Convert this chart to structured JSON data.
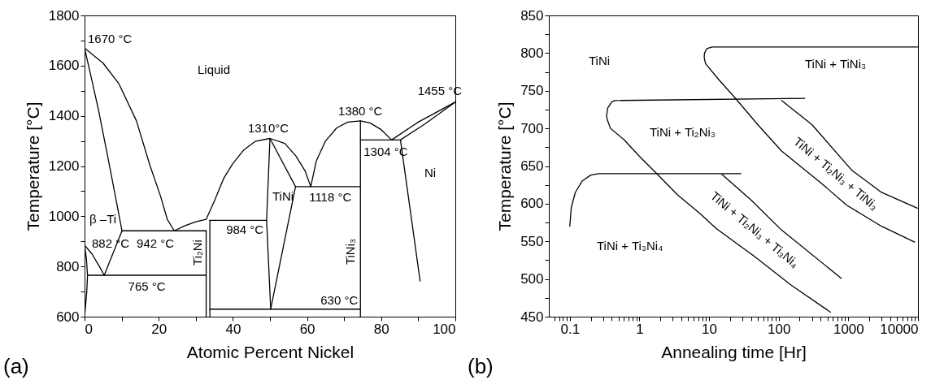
{
  "chart_data": [
    {
      "type": "line",
      "xlabel": "Atomic Percent Nickel",
      "ylabel": "Temperature [°C]",
      "xlim": [
        0,
        100
      ],
      "ylim": [
        600,
        1800
      ],
      "xticks": [
        0,
        {
          "value": 10,
          "label": null
        },
        20,
        {
          "value": 30,
          "label": null
        },
        40,
        {
          "value": 50,
          "label": null
        },
        60,
        {
          "value": 70,
          "label": null
        },
        80,
        {
          "value": 90,
          "label": null
        },
        100
      ],
      "yticks": [
        600,
        {
          "value": 700,
          "label": null
        },
        800,
        {
          "value": 900,
          "label": null
        },
        1000,
        {
          "value": 1100,
          "label": null
        },
        1200,
        {
          "value": 1300,
          "label": null
        },
        1400,
        {
          "value": 1500,
          "label": null
        },
        1600,
        {
          "value": 1700,
          "label": null
        },
        1800
      ],
      "series": [
        {
          "color": "#000000",
          "x": [
            0,
            5,
            9.3,
            14,
            17.6,
            20.5,
            22.3,
            24.2
          ],
          "values": [
            1670,
            1610,
            1527,
            1380,
            1204,
            1080,
            988,
            942
          ]
        },
        {
          "color": "#000000",
          "x": [
            0,
            2,
            3.8,
            6.7,
            8.7,
            10.1
          ],
          "values": [
            1670,
            1540,
            1420,
            1204,
            1050,
            942
          ]
        },
        {
          "color": "#000000",
          "x": [
            10.1,
            32.8
          ],
          "values": [
            942,
            942
          ]
        },
        {
          "color": "#000000",
          "x": [
            0,
            2,
            4,
            5.3,
            10.1
          ],
          "values": [
            885,
            850,
            800,
            765,
            942
          ]
        },
        {
          "color": "#000000",
          "x": [
            0.8,
            32.8
          ],
          "values": [
            765,
            765
          ]
        },
        {
          "color": "#000000",
          "x": [
            0,
            0.6,
            0.8,
            0.5,
            0
          ],
          "values": [
            600,
            700,
            765,
            830,
            885
          ]
        },
        {
          "color": "#000000",
          "x": [
            32.8,
            32.8
          ],
          "values": [
            600,
            942
          ]
        },
        {
          "color": "#000000",
          "x": [
            24.2,
            27,
            30,
            32.8,
            35,
            37.5,
            40,
            43,
            46,
            50,
            54,
            57,
            59.5,
            61
          ],
          "values": [
            942,
            962,
            978,
            988,
            1060,
            1150,
            1210,
            1265,
            1298,
            1310,
            1290,
            1240,
            1180,
            1118
          ]
        },
        {
          "color": "#000000",
          "x": [
            33.8,
            33.8
          ],
          "values": [
            600,
            984
          ]
        },
        {
          "color": "#000000",
          "x": [
            33.8,
            49.1
          ],
          "values": [
            984,
            984
          ]
        },
        {
          "color": "#000000",
          "x": [
            50,
            49.1,
            50.2
          ],
          "values": [
            1310,
            984,
            630
          ]
        },
        {
          "color": "#000000",
          "x": [
            50,
            56.9,
            50.2
          ],
          "values": [
            1310,
            1118,
            630
          ]
        },
        {
          "color": "#000000",
          "x": [
            56.9,
            74.4
          ],
          "values": [
            1118,
            1118
          ]
        },
        {
          "color": "#000000",
          "x": [
            33.8,
            74.4
          ],
          "values": [
            630,
            630
          ]
        },
        {
          "color": "#000000",
          "x": [
            74.4,
            74.4
          ],
          "values": [
            600,
            1380
          ]
        },
        {
          "color": "#000000",
          "x": [
            61,
            62.5,
            65,
            68,
            71,
            74.4,
            77,
            80,
            82.8
          ],
          "values": [
            1118,
            1220,
            1300,
            1352,
            1375,
            1380,
            1372,
            1345,
            1304
          ]
        },
        {
          "color": "#000000",
          "x": [
            74.4,
            85.2
          ],
          "values": [
            1304,
            1304
          ]
        },
        {
          "color": "#000000",
          "x": [
            82.8,
            90,
            100
          ],
          "values": [
            1304,
            1375,
            1455
          ]
        },
        {
          "color": "#000000",
          "x": [
            85.2,
            92,
            100
          ],
          "values": [
            1304,
            1370,
            1455
          ]
        },
        {
          "color": "#000000",
          "x": [
            85.2,
            90.5
          ],
          "values": [
            1304,
            742
          ]
        }
      ],
      "annotations": [
        {
          "text": "1670 °C",
          "x": 0,
          "y": 1670
        },
        {
          "text": "1310°C",
          "x": 50,
          "y": 1310
        },
        {
          "text": "1380 °C",
          "x": 74.4,
          "y": 1380
        },
        {
          "text": "1455 °C",
          "x": 100,
          "y": 1455
        },
        {
          "text": "1304 °C",
          "x": 74.4,
          "y": 1304
        },
        {
          "text": "1118 °C",
          "x": 61,
          "y": 1118
        },
        {
          "text": "984 °C",
          "x": 33.8,
          "y": 984
        },
        {
          "text": "882 °C",
          "x": 0,
          "y": 885
        },
        {
          "text": "942 °C",
          "x": 10.1,
          "y": 942
        },
        {
          "text": "765 °C",
          "x": 16.8,
          "y": 765
        },
        {
          "text": "630 °C",
          "x": 74.4,
          "y": 630
        },
        "Liquid",
        "Ni",
        "TiNi",
        "β –Ti",
        "Ti₂Ni",
        "TiNi₃",
        "(a)"
      ]
    },
    {
      "type": "line",
      "xlabel": "Annealing time [Hr]",
      "ylabel": "Temperature [°C]",
      "log": "x",
      "xlim": [
        0.05,
        10000
      ],
      "ylim": [
        450,
        850
      ],
      "xticks": [
        {
          "value": 0.06,
          "label": null
        },
        {
          "value": 0.07,
          "label": null
        },
        {
          "value": 0.08,
          "label": null
        },
        {
          "value": 0.09,
          "label": null
        },
        0.1,
        {
          "value": 0.2,
          "label": null
        },
        {
          "value": 0.3,
          "label": null
        },
        {
          "value": 0.4,
          "label": null
        },
        {
          "value": 0.5,
          "label": null
        },
        {
          "value": 0.6,
          "label": null
        },
        {
          "value": 0.7,
          "label": null
        },
        {
          "value": 0.8,
          "label": null
        },
        {
          "value": 0.9,
          "label": null
        },
        1,
        {
          "value": 2,
          "label": null
        },
        {
          "value": 3,
          "label": null
        },
        {
          "value": 4,
          "label": null
        },
        {
          "value": 5,
          "label": null
        },
        {
          "value": 6,
          "label": null
        },
        {
          "value": 7,
          "label": null
        },
        {
          "value": 8,
          "label": null
        },
        {
          "value": 9,
          "label": null
        },
        10,
        {
          "value": 20,
          "label": null
        },
        {
          "value": 30,
          "label": null
        },
        {
          "value": 40,
          "label": null
        },
        {
          "value": 50,
          "label": null
        },
        {
          "value": 60,
          "label": null
        },
        {
          "value": 70,
          "label": null
        },
        {
          "value": 80,
          "label": null
        },
        {
          "value": 90,
          "label": null
        },
        100,
        {
          "value": 200,
          "label": null
        },
        {
          "value": 300,
          "label": null
        },
        {
          "value": 400,
          "label": null
        },
        {
          "value": 500,
          "label": null
        },
        {
          "value": 600,
          "label": null
        },
        {
          "value": 700,
          "label": null
        },
        {
          "value": 800,
          "label": null
        },
        {
          "value": 900,
          "label": null
        },
        1000,
        {
          "value": 2000,
          "label": null
        },
        {
          "value": 3000,
          "label": null
        },
        {
          "value": 4000,
          "label": null
        },
        {
          "value": 5000,
          "label": null
        },
        {
          "value": 6000,
          "label": null
        },
        {
          "value": 7000,
          "label": null
        },
        {
          "value": 8000,
          "label": null
        },
        {
          "value": 9000,
          "label": null
        },
        10000
      ],
      "yticks": [
        450,
        {
          "value": 475,
          "label": null
        },
        500,
        {
          "value": 525,
          "label": null
        },
        550,
        {
          "value": 575,
          "label": null
        },
        600,
        {
          "value": 625,
          "label": null
        },
        650,
        {
          "value": 675,
          "label": null
        },
        700,
        {
          "value": 725,
          "label": null
        },
        750,
        {
          "value": 775,
          "label": null
        },
        800,
        {
          "value": 825,
          "label": null
        },
        850
      ],
      "series": [
        {
          "color": "#000000",
          "x": [
            0.1,
            0.105,
            0.12,
            0.15,
            0.2,
            0.26,
            28.6
          ],
          "values": [
            570,
            595,
            615,
            630,
            638,
            640,
            640
          ]
        },
        {
          "color": "#000000",
          "x": [
            236,
            0.44,
            0.4,
            0.35,
            0.337,
            0.35,
            0.384,
            0.6,
            1,
            1.77,
            3.5,
            7.4,
            12.7,
            44.8,
            150,
            553
          ],
          "values": [
            740,
            737,
            735,
            727,
            716,
            710,
            700,
            685,
            663,
            640,
            612,
            587,
            567,
            530,
            492,
            456
          ]
        },
        {
          "color": "#000000",
          "x": [
            10000,
            11,
            9.3,
            8.6,
            8.5,
            8.9,
            14,
            23.9,
            50,
            110,
            400,
            948,
            3000,
            8935
          ],
          "values": [
            808,
            808,
            806,
            800,
            794,
            786,
            764,
            740,
            705,
            670,
            628,
            598,
            570,
            549
          ]
        },
        {
          "color": "#000000",
          "x": [
            110,
            300,
            1135,
            3000,
            9770
          ],
          "values": [
            737,
            705,
            644,
            615,
            594
          ]
        },
        {
          "color": "#000000",
          "x": [
            15.3,
            40,
            110,
            791
          ],
          "values": [
            639,
            605,
            565,
            501
          ]
        }
      ],
      "annotations": [
        "TiNi",
        "TiNi + TiNi₃",
        "TiNi + Ti₂Ni₃",
        "TiNi + Ti₃Ni₄",
        "TiNi + Ti₂Ni₃ + TiNi₃",
        "TiNi + Ti₂Ni₃ + Ti₃Ni₄",
        "(b)"
      ]
    }
  ]
}
